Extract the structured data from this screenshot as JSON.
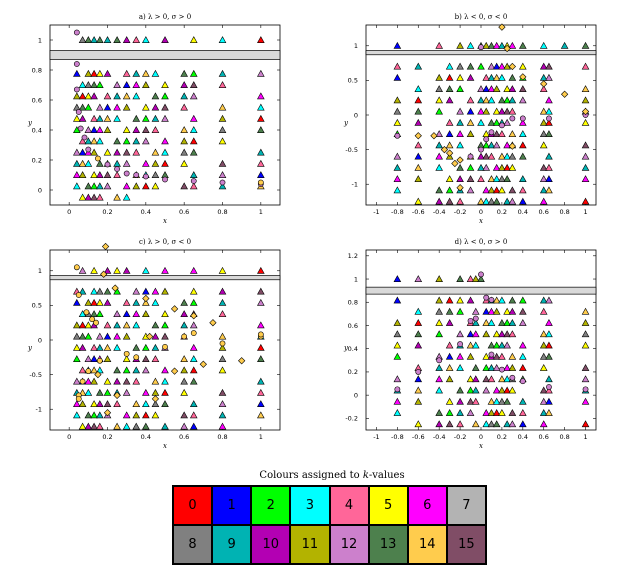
{
  "chart_data": [
    {
      "type": "scatter",
      "title": "a) λ > 0, σ > 0",
      "xlabel": "x",
      "ylabel": "y",
      "xlim": [
        -0.1,
        1.1
      ],
      "ylim": [
        -0.1,
        1.1
      ],
      "xticks": [
        "0",
        "0.2",
        "0.4",
        "0.6",
        "0.8",
        "1"
      ],
      "xtick_values": [
        0,
        0.2,
        0.4,
        0.6,
        0.8,
        1
      ],
      "yticks": [
        "0",
        "0.2",
        "0.4",
        "0.6",
        "0.8",
        "1"
      ],
      "ytick_values": [
        0,
        0.2,
        0.4,
        0.6,
        0.8,
        1
      ],
      "band": [
        0.87,
        0.93
      ],
      "xcols": [
        0.04,
        0.07,
        0.1,
        0.13,
        0.16,
        0.2,
        0.25,
        0.3,
        0.35,
        0.4,
        0.45,
        0.5,
        0.6,
        0.65,
        0.8,
        1.0
      ],
      "triangles_top": [
        [
          0.07,
          1,
          8
        ],
        [
          0.1,
          1,
          13
        ],
        [
          0.13,
          1,
          9
        ],
        [
          0.16,
          1,
          13
        ],
        [
          0.2,
          1,
          9
        ],
        [
          0.25,
          1,
          13
        ],
        [
          0.3,
          1,
          10
        ],
        [
          0.35,
          1,
          4
        ],
        [
          0.4,
          1,
          3
        ],
        [
          0.5,
          1,
          10
        ],
        [
          0.65,
          1,
          5
        ],
        [
          0.8,
          1,
          3
        ],
        [
          1,
          1,
          0
        ]
      ],
      "circles": [
        [
          0.04,
          1.05,
          12
        ],
        [
          0.04,
          0.84,
          12
        ],
        [
          0.04,
          0.67,
          12
        ],
        [
          0.05,
          0.52,
          12
        ],
        [
          0.06,
          0.41,
          12
        ],
        [
          0.08,
          0.35,
          12
        ],
        [
          0.1,
          0.27,
          12
        ],
        [
          0.15,
          0.21,
          14
        ],
        [
          0.2,
          0.17,
          12
        ],
        [
          0.25,
          0.14,
          12
        ],
        [
          0.3,
          0.11,
          12
        ],
        [
          0.35,
          0.1,
          12
        ],
        [
          0.4,
          0.09,
          12
        ],
        [
          0.5,
          0.07,
          12
        ],
        [
          0.65,
          0.06,
          12
        ],
        [
          0.8,
          0.05,
          12
        ],
        [
          1,
          0.04,
          12
        ],
        [
          1,
          0.05,
          14
        ]
      ],
      "diamonds": []
    },
    {
      "type": "scatter",
      "title": "b) λ < 0, σ < 0",
      "xlabel": "x",
      "ylabel": "y",
      "xlim": [
        -1.1,
        1.1
      ],
      "ylim": [
        -1.3,
        1.3
      ],
      "xticks": [
        "-1",
        "-0.8",
        "-0.6",
        "-0.4",
        "-0.2",
        "0",
        "0.2",
        "0.4",
        "0.6",
        "0.8",
        "1"
      ],
      "xtick_values": [
        -1,
        -0.8,
        -0.6,
        -0.4,
        -0.2,
        0,
        0.2,
        0.4,
        0.6,
        0.8,
        1
      ],
      "yticks": [
        "-1",
        "-0.5",
        "0",
        "0.5",
        "1"
      ],
      "ytick_values": [
        -1,
        -0.5,
        0,
        0.5,
        1
      ],
      "band": [
        0.87,
        0.93
      ],
      "xcols": [
        -0.8,
        -0.6,
        -0.4,
        -0.3,
        -0.2,
        -0.1,
        0,
        0.05,
        0.1,
        0.15,
        0.2,
        0.25,
        0.3,
        0.4,
        0.6,
        0.65,
        1.0
      ],
      "triangles_top": [
        [
          -0.8,
          1,
          1
        ],
        [
          -0.4,
          1,
          4
        ],
        [
          -0.2,
          1,
          11
        ],
        [
          -0.1,
          1,
          3
        ],
        [
          0,
          1,
          13
        ],
        [
          0.05,
          1,
          11
        ],
        [
          0.1,
          1,
          13
        ],
        [
          0.15,
          1,
          6
        ],
        [
          0.2,
          1,
          9
        ],
        [
          0.25,
          1,
          5
        ],
        [
          0.3,
          1,
          6
        ],
        [
          0.4,
          1,
          13
        ],
        [
          0.6,
          1,
          3
        ],
        [
          0.8,
          1,
          9
        ],
        [
          1,
          1,
          13
        ]
      ],
      "circles": [
        [
          0,
          0.98,
          12
        ],
        [
          -0.8,
          -0.3,
          12
        ],
        [
          -0.1,
          -0.6,
          12
        ],
        [
          0,
          -0.5,
          12
        ],
        [
          0.05,
          -0.35,
          12
        ],
        [
          0.1,
          -0.25,
          12
        ],
        [
          0.2,
          -0.15,
          12
        ],
        [
          0.3,
          -0.05,
          12
        ],
        [
          0.4,
          -0.05,
          12
        ],
        [
          0.65,
          -0.05,
          12
        ],
        [
          1,
          0,
          12
        ]
      ],
      "diamonds": [
        [
          0.2,
          1.27,
          14
        ],
        [
          0.25,
          0.96,
          14
        ],
        [
          0.3,
          0.7,
          14
        ],
        [
          0.4,
          0.55,
          14
        ],
        [
          0.6,
          0.45,
          14
        ],
        [
          0.8,
          0.3,
          14
        ],
        [
          1,
          0.05,
          14
        ],
        [
          0.3,
          -0.45,
          14
        ],
        [
          -0.2,
          -0.65,
          14
        ],
        [
          -0.25,
          -0.7,
          14
        ],
        [
          -0.3,
          -0.55,
          14
        ],
        [
          -0.35,
          -0.5,
          14
        ],
        [
          -0.2,
          -1.05,
          14
        ],
        [
          -0.45,
          -0.3,
          14
        ],
        [
          -0.6,
          -0.3,
          14
        ]
      ]
    },
    {
      "type": "scatter",
      "title": "c) λ > 0, σ < 0",
      "xlabel": "x",
      "ylabel": "y",
      "xlim": [
        -0.1,
        1.1
      ],
      "ylim": [
        -1.3,
        1.3
      ],
      "xticks": [
        "0",
        "0.2",
        "0.4",
        "0.6",
        "0.8",
        "1"
      ],
      "xtick_values": [
        0,
        0.2,
        0.4,
        0.6,
        0.8,
        1
      ],
      "yticks": [
        "-1",
        "-0.5",
        "0",
        "0.5",
        "1"
      ],
      "ytick_values": [
        -1,
        -0.5,
        0,
        0.5,
        1
      ],
      "band": [
        0.87,
        0.93
      ],
      "xcols": [
        0.04,
        0.07,
        0.1,
        0.13,
        0.16,
        0.2,
        0.25,
        0.3,
        0.35,
        0.4,
        0.45,
        0.5,
        0.6,
        0.65,
        0.8,
        1.0
      ],
      "triangles_top": [
        [
          0.07,
          1,
          12
        ],
        [
          0.13,
          1,
          5
        ],
        [
          0.2,
          1,
          10
        ],
        [
          0.25,
          1,
          5
        ],
        [
          0.3,
          1,
          10
        ],
        [
          0.4,
          1,
          3
        ],
        [
          0.5,
          1,
          6
        ],
        [
          0.65,
          1,
          6
        ],
        [
          0.8,
          1,
          5
        ],
        [
          1,
          1,
          0
        ]
      ],
      "circles": [
        [
          0.04,
          1.05,
          14
        ],
        [
          0.05,
          0.65,
          14
        ],
        [
          0.09,
          0.4,
          14
        ],
        [
          0.12,
          0.3,
          14
        ],
        [
          0.14,
          0.25,
          14
        ],
        [
          0.16,
          -0.3,
          14
        ],
        [
          0.1,
          -0.45,
          14
        ],
        [
          0.07,
          -0.6,
          14
        ],
        [
          0.05,
          -0.8,
          14
        ],
        [
          0.05,
          -0.85,
          14
        ],
        [
          0.3,
          -0.2,
          14
        ],
        [
          0.35,
          -0.25,
          14
        ],
        [
          0.5,
          -0.1,
          14
        ],
        [
          0.6,
          0.05,
          14
        ],
        [
          0.65,
          0.1,
          14
        ],
        [
          0.8,
          -0.05,
          14
        ],
        [
          1,
          0.05,
          14
        ],
        [
          1,
          0.08,
          14
        ]
      ],
      "diamonds": [
        [
          0.19,
          1.35,
          14
        ],
        [
          0.18,
          0.95,
          14
        ],
        [
          0.24,
          0.75,
          14
        ],
        [
          0.4,
          0.6,
          14
        ],
        [
          0.55,
          0.45,
          14
        ],
        [
          0.65,
          0.35,
          14
        ],
        [
          0.75,
          0.25,
          14
        ],
        [
          0.25,
          -0.8,
          14
        ],
        [
          0.2,
          -1.05,
          14
        ],
        [
          0.45,
          -0.85,
          14
        ],
        [
          0.55,
          -0.45,
          14
        ],
        [
          0.7,
          -0.35,
          14
        ],
        [
          0.9,
          -0.3,
          14
        ],
        [
          0.42,
          0.05,
          14
        ],
        [
          0.15,
          -0.5,
          14
        ]
      ]
    },
    {
      "type": "scatter",
      "title": "d) λ < 0, σ > 0",
      "xlabel": "x",
      "ylabel": "y",
      "xlim": [
        -1.1,
        1.1
      ],
      "ylim": [
        -0.3,
        1.25
      ],
      "xticks": [
        "-1",
        "-0.8",
        "-0.6",
        "-0.4",
        "-0.2",
        "0",
        "0.2",
        "0.4",
        "0.6",
        "0.8",
        "1"
      ],
      "xtick_values": [
        -1,
        -0.8,
        -0.6,
        -0.4,
        -0.2,
        0,
        0.2,
        0.4,
        0.6,
        0.8,
        1
      ],
      "yticks": [
        "-0.2",
        "0",
        "0.2",
        "0.4",
        "0.6",
        "0.8",
        "1",
        "1.2"
      ],
      "ytick_values": [
        -0.2,
        0,
        0.2,
        0.4,
        0.6,
        0.8,
        1,
        1.2
      ],
      "band": [
        0.87,
        0.93
      ],
      "xcols": [
        -0.8,
        -0.6,
        -0.4,
        -0.3,
        -0.2,
        -0.1,
        -0.05,
        0.05,
        0.1,
        0.15,
        0.2,
        0.25,
        0.3,
        0.4,
        0.6,
        0.65,
        1.0
      ],
      "triangles_top": [
        [
          -0.8,
          1,
          1
        ],
        [
          -0.6,
          1,
          12
        ],
        [
          -0.4,
          1,
          11
        ],
        [
          -0.2,
          1,
          13
        ],
        [
          -0.1,
          1,
          4
        ],
        [
          -0.05,
          1,
          11
        ],
        [
          0,
          1,
          13
        ]
      ],
      "circles": [
        [
          0,
          1.04,
          12
        ],
        [
          0.05,
          0.84,
          12
        ],
        [
          0.1,
          0.82,
          12
        ],
        [
          -0.05,
          0.66,
          12
        ],
        [
          -0.1,
          0.64,
          12
        ],
        [
          -0.2,
          0.44,
          12
        ],
        [
          -0.4,
          0.3,
          12
        ],
        [
          -0.6,
          0.2,
          12
        ],
        [
          -0.8,
          0.05,
          12
        ],
        [
          0.1,
          0.35,
          12
        ],
        [
          0.2,
          0.22,
          12
        ],
        [
          0.3,
          0.15,
          12
        ],
        [
          0.4,
          0.12,
          12
        ],
        [
          0.65,
          0.07,
          12
        ],
        [
          1,
          0.05,
          12
        ]
      ],
      "diamonds": []
    }
  ],
  "legend": {
    "title_pre": "Colours assigned to ",
    "title_var": "k",
    "title_post": "-values",
    "colors": [
      "#ff0000",
      "#0000ff",
      "#00ff00",
      "#00ffff",
      "#ff6699",
      "#ffff00",
      "#ff00ff",
      "#b3b3b3",
      "#808080",
      "#00b3b3",
      "#b300b3",
      "#b3b300",
      "#cc80cc",
      "#4d804d",
      "#ffcc4d",
      "#804d66"
    ],
    "labels": [
      "0",
      "1",
      "2",
      "3",
      "4",
      "5",
      "6",
      "7",
      "8",
      "9",
      "10",
      "11",
      "12",
      "13",
      "14",
      "15"
    ]
  }
}
